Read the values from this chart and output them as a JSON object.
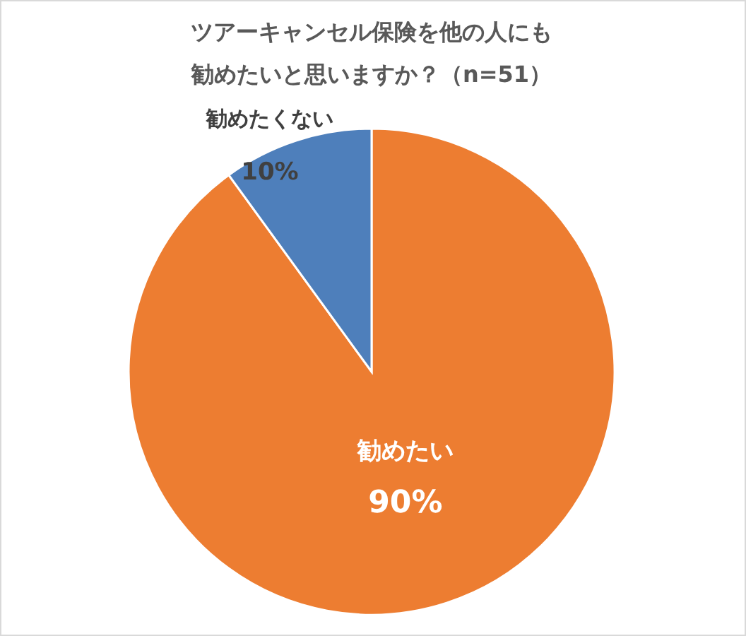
{
  "chart_data": {
    "type": "pie",
    "title": "ツアーキャンセル保険を他の人にも勧めたいと思いますか？（n=51）",
    "categories": [
      "勧めたい",
      "勧めたくない"
    ],
    "values": [
      90,
      10
    ],
    "colors": [
      "#ed7d31",
      "#4e7fbb"
    ],
    "value_labels": [
      "90%",
      "10%"
    ]
  }
}
